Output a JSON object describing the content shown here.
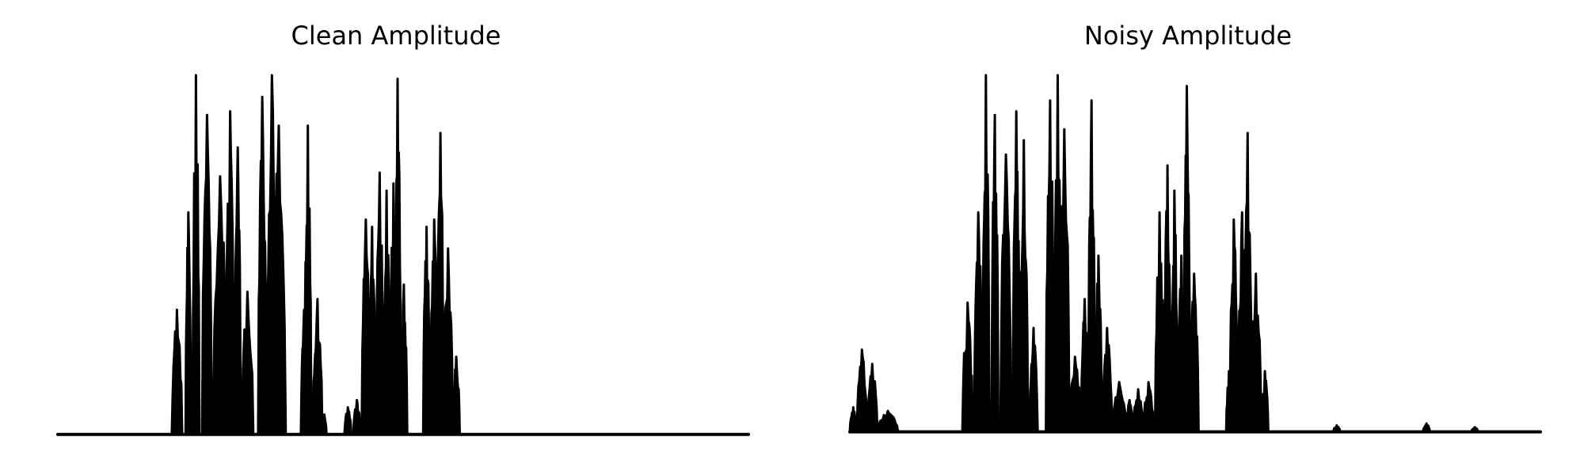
{
  "chart_data": [
    {
      "type": "area",
      "title": "Clean Amplitude",
      "xlabel": "",
      "ylabel": "",
      "axes_visible": false,
      "grid": false,
      "ylim": [
        0,
        1
      ],
      "baseline": 0.005,
      "color": "#000000",
      "peaks": [
        [
          0.165,
          0.18,
          0.35
        ],
        [
          0.185,
          0.193,
          0.62
        ],
        [
          0.195,
          0.205,
          1.0
        ],
        [
          0.209,
          0.223,
          0.89
        ],
        [
          0.225,
          0.245,
          0.72
        ],
        [
          0.243,
          0.256,
          0.9
        ],
        [
          0.256,
          0.265,
          0.8
        ],
        [
          0.266,
          0.283,
          0.4
        ],
        [
          0.29,
          0.302,
          0.94
        ],
        [
          0.302,
          0.318,
          1.0
        ],
        [
          0.31,
          0.33,
          0.86
        ],
        [
          0.352,
          0.361,
          0.35
        ],
        [
          0.357,
          0.367,
          0.86
        ],
        [
          0.369,
          0.383,
          0.38
        ],
        [
          0.383,
          0.389,
          0.06
        ],
        [
          0.415,
          0.425,
          0.08
        ],
        [
          0.428,
          0.438,
          0.1
        ],
        [
          0.44,
          0.452,
          0.6
        ],
        [
          0.45,
          0.46,
          0.58
        ],
        [
          0.46,
          0.472,
          0.73
        ],
        [
          0.471,
          0.481,
          0.68
        ],
        [
          0.481,
          0.491,
          0.7
        ],
        [
          0.487,
          0.497,
          0.99
        ],
        [
          0.496,
          0.506,
          0.42
        ],
        [
          0.529,
          0.539,
          0.58
        ],
        [
          0.539,
          0.551,
          0.6
        ],
        [
          0.549,
          0.559,
          0.84
        ],
        [
          0.558,
          0.572,
          0.52
        ],
        [
          0.572,
          0.582,
          0.22
        ]
      ]
    },
    {
      "type": "area",
      "title": "Noisy Amplitude",
      "xlabel": "",
      "ylabel": "",
      "axes_visible": false,
      "grid": false,
      "ylim": [
        0,
        1
      ],
      "baseline": 0.012,
      "color": "#000000",
      "peaks": [
        [
          0.0,
          0.01,
          0.08
        ],
        [
          0.01,
          0.025,
          0.24
        ],
        [
          0.025,
          0.04,
          0.2
        ],
        [
          0.04,
          0.07,
          0.07
        ],
        [
          0.163,
          0.178,
          0.37
        ],
        [
          0.18,
          0.192,
          0.62
        ],
        [
          0.192,
          0.202,
          1.0
        ],
        [
          0.205,
          0.215,
          0.89
        ],
        [
          0.218,
          0.234,
          0.78
        ],
        [
          0.236,
          0.246,
          0.9
        ],
        [
          0.246,
          0.258,
          0.82
        ],
        [
          0.26,
          0.272,
          0.3
        ],
        [
          0.284,
          0.296,
          0.93
        ],
        [
          0.296,
          0.306,
          1.0
        ],
        [
          0.303,
          0.318,
          0.85
        ],
        [
          0.317,
          0.335,
          0.22
        ],
        [
          0.335,
          0.345,
          0.38
        ],
        [
          0.345,
          0.355,
          0.93
        ],
        [
          0.355,
          0.365,
          0.5
        ],
        [
          0.365,
          0.38,
          0.3
        ],
        [
          0.38,
          0.4,
          0.15
        ],
        [
          0.4,
          0.41,
          0.1
        ],
        [
          0.41,
          0.425,
          0.13
        ],
        [
          0.425,
          0.44,
          0.15
        ],
        [
          0.442,
          0.455,
          0.62
        ],
        [
          0.455,
          0.465,
          0.75
        ],
        [
          0.465,
          0.475,
          0.68
        ],
        [
          0.475,
          0.485,
          0.5
        ],
        [
          0.483,
          0.493,
          0.97
        ],
        [
          0.492,
          0.505,
          0.45
        ],
        [
          0.545,
          0.553,
          0.18
        ],
        [
          0.55,
          0.562,
          0.6
        ],
        [
          0.562,
          0.574,
          0.62
        ],
        [
          0.57,
          0.582,
          0.84
        ],
        [
          0.58,
          0.596,
          0.45
        ],
        [
          0.596,
          0.606,
          0.18
        ],
        [
          0.7,
          0.71,
          0.03
        ],
        [
          0.83,
          0.84,
          0.035
        ],
        [
          0.9,
          0.91,
          0.025
        ]
      ]
    }
  ]
}
